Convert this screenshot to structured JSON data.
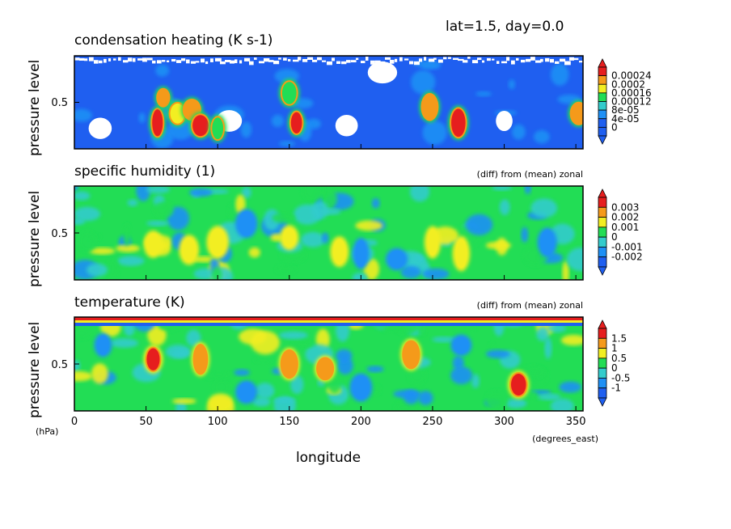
{
  "header": "lat=1.5, day=0.0",
  "colors": {
    "scale": [
      "#1f5ff0",
      "#1e90f5",
      "#33cccc",
      "#22dd55",
      "#f2ee22",
      "#f59a1a",
      "#e61e1e"
    ],
    "background_blank": "#ffffff"
  },
  "chart_data": [
    {
      "type": "heatmap",
      "title": "condensation heating (K s-1)",
      "subtitle": "",
      "ylabel": "pressure level",
      "y_ticks": [
        "0.5"
      ],
      "colorbar_labels": [
        "0.00024",
        "0.0002",
        "0.00016",
        "0.00012",
        "8e-05",
        "4e-05",
        "0"
      ],
      "hotspots": [
        {
          "lon": 58,
          "level": 0.72,
          "value": 0.00026
        },
        {
          "lon": 62,
          "level": 0.45,
          "value": 0.00022
        },
        {
          "lon": 72,
          "level": 0.62,
          "value": 0.00018
        },
        {
          "lon": 82,
          "level": 0.58,
          "value": 0.0002
        },
        {
          "lon": 88,
          "level": 0.75,
          "value": 0.00024
        },
        {
          "lon": 100,
          "level": 0.78,
          "value": 0.00014
        },
        {
          "lon": 155,
          "level": 0.72,
          "value": 0.00026
        },
        {
          "lon": 150,
          "level": 0.4,
          "value": 0.00012
        },
        {
          "lon": 248,
          "level": 0.55,
          "value": 0.00022
        },
        {
          "lon": 268,
          "level": 0.72,
          "value": 0.00026
        },
        {
          "lon": 352,
          "level": 0.62,
          "value": 0.00022
        }
      ],
      "blank_areas": [
        {
          "lon": 18,
          "level": 0.78
        },
        {
          "lon": 108,
          "level": 0.7
        },
        {
          "lon": 190,
          "level": 0.75
        },
        {
          "lon": 215,
          "level": 0.18
        },
        {
          "lon": 300,
          "level": 0.7
        }
      ]
    },
    {
      "type": "heatmap",
      "title": "specific humidity (1)",
      "subtitle": "(diff) from (mean) zonal",
      "ylabel": "pressure level",
      "y_ticks": [
        "0.5"
      ],
      "colorbar_labels": [
        "0.003",
        "0.002",
        "0.001",
        "0",
        "-0.001",
        "-0.002"
      ],
      "hotspots": [
        {
          "lon": 55,
          "level": 0.62,
          "value": 0.0018
        },
        {
          "lon": 80,
          "level": 0.68,
          "value": 0.0016
        },
        {
          "lon": 100,
          "level": 0.6,
          "value": 0.0012
        },
        {
          "lon": 150,
          "level": 0.55,
          "value": 0.0016
        },
        {
          "lon": 185,
          "level": 0.7,
          "value": 0.0012
        },
        {
          "lon": 250,
          "level": 0.6,
          "value": 0.0014
        },
        {
          "lon": 270,
          "level": 0.72,
          "value": 0.0018
        },
        {
          "lon": 120,
          "level": 0.4,
          "value": -0.0012
        },
        {
          "lon": 200,
          "level": 0.72,
          "value": -0.0018
        },
        {
          "lon": 225,
          "level": 0.78,
          "value": -0.0016
        },
        {
          "lon": 330,
          "level": 0.6,
          "value": -0.0014
        }
      ]
    },
    {
      "type": "heatmap",
      "title": "temperature (K)",
      "subtitle": "(diff) from (mean) zonal",
      "ylabel": "pressure level",
      "y_ticks": [
        "0.5"
      ],
      "colorbar_labels": [
        "1.5",
        "1",
        "0.5",
        "0",
        "-0.5",
        "-1"
      ],
      "xlabel": "longitude",
      "x_unit": "(degrees_east)",
      "y_unit": "(hPa)",
      "x_ticks": [
        0,
        50,
        100,
        150,
        200,
        250,
        300,
        350
      ],
      "xlim": [
        0,
        355
      ],
      "hotspots": [
        {
          "lon": 55,
          "level": 0.45,
          "value": 1.6
        },
        {
          "lon": 88,
          "level": 0.45,
          "value": 1.2
        },
        {
          "lon": 150,
          "level": 0.5,
          "value": 1.1
        },
        {
          "lon": 175,
          "level": 0.55,
          "value": 1.2
        },
        {
          "lon": 235,
          "level": 0.4,
          "value": 1.0
        },
        {
          "lon": 310,
          "level": 0.72,
          "value": 1.6
        },
        {
          "lon": 20,
          "level": 0.3,
          "value": -0.8
        },
        {
          "lon": 120,
          "level": 0.8,
          "value": -0.9
        },
        {
          "lon": 200,
          "level": 0.75,
          "value": -0.8
        },
        {
          "lon": 270,
          "level": 0.3,
          "value": -0.9
        }
      ]
    }
  ]
}
